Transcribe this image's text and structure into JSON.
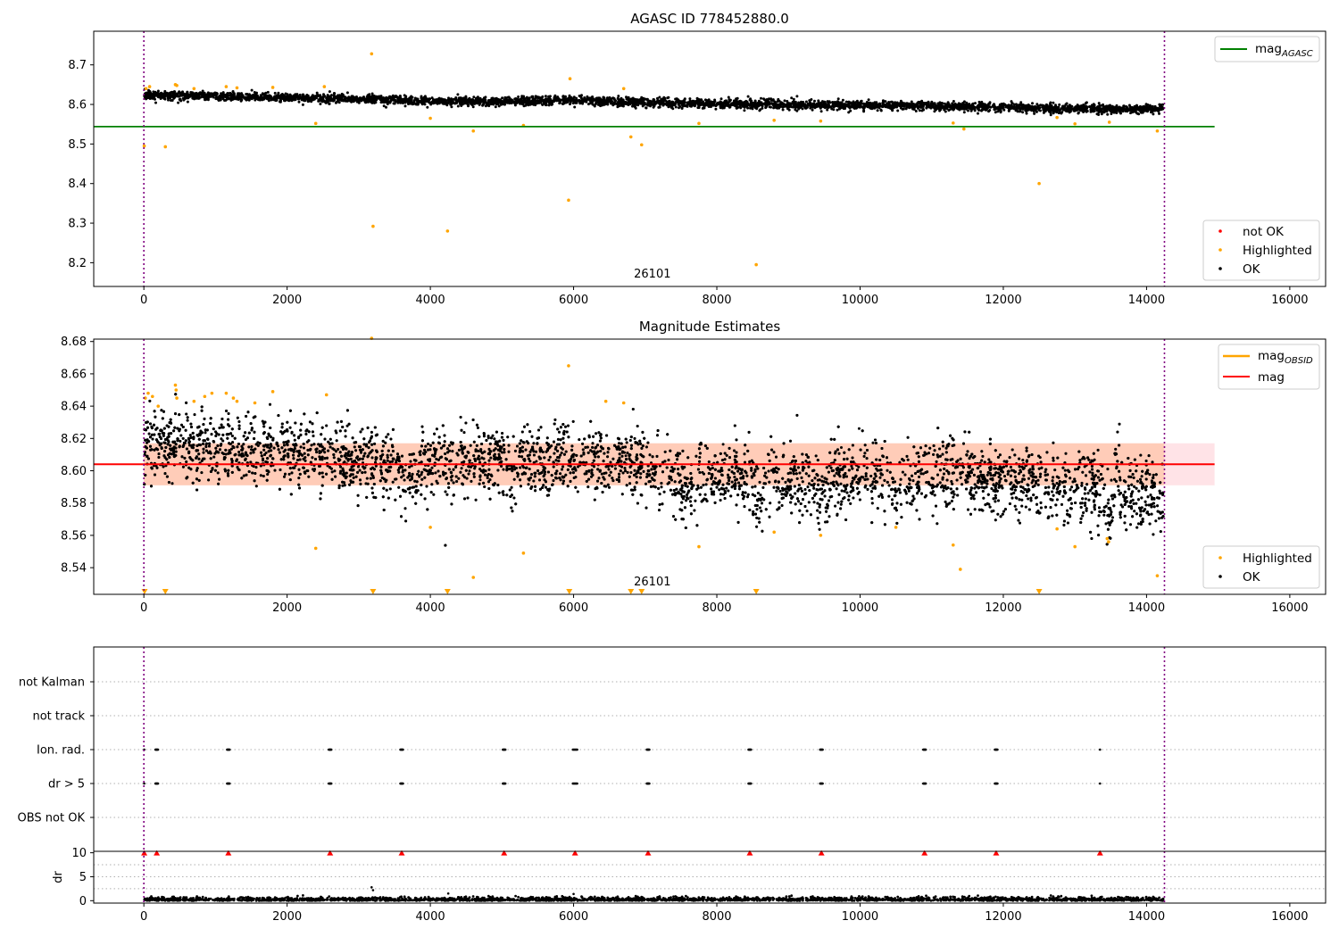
{
  "chart_data": [
    {
      "panel": "mag_agasc",
      "type": "scatter",
      "title": "AGASC ID 778452880.0",
      "xlim": [
        -700,
        16500
      ],
      "ylim": [
        8.14,
        8.785
      ],
      "xticks": [
        0,
        2000,
        4000,
        6000,
        8000,
        10000,
        12000,
        14000,
        16000
      ],
      "yticks": [
        8.2,
        8.3,
        8.4,
        8.5,
        8.6,
        8.7
      ],
      "annotation": "26101",
      "annotation_x": 7100,
      "vlines": [
        0,
        14250
      ],
      "hlines": [
        {
          "name": "mag_AGASC",
          "y": 8.544,
          "x_range": [
            0,
            14950
          ],
          "color": "#008000"
        }
      ],
      "ok_trend": {
        "x": [
          0,
          1000,
          2000,
          3000,
          4000,
          5000,
          6000,
          7000,
          8000,
          9000,
          10000,
          11000,
          12000,
          13000,
          14250
        ],
        "y": [
          8.624,
          8.621,
          8.617,
          8.614,
          8.607,
          8.607,
          8.61,
          8.605,
          8.601,
          8.6,
          8.598,
          8.596,
          8.593,
          8.589,
          8.588
        ]
      },
      "highlighted": {
        "x": [
          5,
          30,
          80,
          300,
          440,
          460,
          700,
          1150,
          1300,
          1800,
          2400,
          2520,
          3180,
          3200,
          4000,
          4240,
          4600,
          5300,
          5930,
          5950,
          6700,
          6800,
          6950,
          7750,
          8550,
          8800,
          9450,
          11300,
          11450,
          12500,
          12750,
          13000,
          13480,
          14150
        ],
        "y": [
          8.495,
          8.64,
          8.645,
          8.493,
          8.65,
          8.648,
          8.64,
          8.645,
          8.642,
          8.643,
          8.552,
          8.645,
          8.728,
          8.292,
          8.565,
          8.28,
          8.533,
          8.547,
          8.358,
          8.665,
          8.64,
          8.518,
          8.498,
          8.552,
          8.195,
          8.56,
          8.558,
          8.553,
          8.538,
          8.4,
          8.567,
          8.551,
          8.555,
          8.533
        ]
      },
      "legend_series": [
        {
          "label": "not OK",
          "color": "#ff0000"
        },
        {
          "label": "Highlighted",
          "color": "#ffa500"
        },
        {
          "label": "OK",
          "color": "#000000"
        }
      ],
      "legend_lines": [
        {
          "label_base": "mag",
          "label_sub": "AGASC",
          "color": "#008000"
        }
      ]
    },
    {
      "panel": "mag_estimates",
      "type": "scatter",
      "title": "Magnitude Estimates",
      "xlim": [
        -700,
        16500
      ],
      "ylim": [
        8.5235,
        8.6815
      ],
      "xticks": [
        0,
        2000,
        4000,
        6000,
        8000,
        10000,
        12000,
        14000,
        16000
      ],
      "yticks": [
        8.54,
        8.56,
        8.58,
        8.6,
        8.62,
        8.64,
        8.66,
        8.68
      ],
      "annotation": "26101",
      "annotation_x": 7100,
      "vlines": [
        0,
        14250
      ],
      "mag_line": 8.604,
      "band_outer": [
        8.591,
        8.617
      ],
      "band_inner": [
        8.591,
        8.617
      ],
      "band_inner_x": [
        0,
        14250
      ],
      "band_outer_x": [
        0,
        14950
      ],
      "ok_trend": {
        "x": [
          0,
          1000,
          2000,
          3000,
          3600,
          4000,
          5000,
          6000,
          7000,
          7500,
          8000,
          9000,
          10000,
          11000,
          12000,
          13000,
          13500,
          14250
        ],
        "y": [
          8.618,
          8.614,
          8.612,
          8.608,
          8.603,
          8.604,
          8.605,
          8.608,
          8.604,
          8.595,
          8.597,
          8.594,
          8.599,
          8.596,
          8.594,
          8.59,
          8.587,
          8.584
        ]
      },
      "highlighted": {
        "x": [
          20,
          60,
          120,
          200,
          440,
          450,
          460,
          700,
          850,
          950,
          1150,
          1250,
          1300,
          1550,
          1800,
          2400,
          2550,
          3180,
          4000,
          4600,
          5300,
          5930,
          6450,
          6700,
          7750,
          8800,
          9450,
          10500,
          11300,
          11400,
          12750,
          13000,
          13450,
          13470,
          14150
        ],
        "y": [
          8.645,
          8.648,
          8.646,
          8.64,
          8.653,
          8.65,
          8.645,
          8.643,
          8.646,
          8.648,
          8.648,
          8.645,
          8.643,
          8.642,
          8.649,
          8.552,
          8.647,
          8.682,
          8.565,
          8.534,
          8.549,
          8.665,
          8.643,
          8.642,
          8.553,
          8.562,
          8.56,
          8.565,
          8.554,
          8.539,
          8.564,
          8.553,
          8.558,
          8.556,
          8.535
        ]
      },
      "off_scale_low_x": [
        10,
        300,
        3200,
        4240,
        5940,
        6800,
        6950,
        8550,
        12500
      ],
      "legend_series": [
        {
          "label": "Highlighted",
          "color": "#ffa500"
        },
        {
          "label": "OK",
          "color": "#000000"
        }
      ],
      "legend_lines": [
        {
          "label_base": "mag",
          "label_sub": "OBSID",
          "color": "#ffa500"
        },
        {
          "label_base": "mag",
          "label_sub": "",
          "color": "#ff0000"
        }
      ]
    },
    {
      "panel": "flags",
      "type": "scatter",
      "xlim": [
        -700,
        16500
      ],
      "vlines": [
        0,
        14250
      ],
      "categories": [
        "not Kalman",
        "not track",
        "Ion. rad.",
        "dr > 5",
        "OBS not OK"
      ],
      "flag_clusters": [
        5,
        180,
        1180,
        2600,
        3600,
        5030,
        6020,
        7040,
        8460,
        9460,
        10900,
        11900,
        13350
      ]
    },
    {
      "panel": "dr",
      "type": "scatter",
      "ylabel": "dr",
      "xlim": [
        -700,
        16500
      ],
      "ylim": [
        -0.5,
        10.3
      ],
      "yticks": [
        0,
        5,
        10
      ],
      "xticks": [
        0,
        2000,
        4000,
        6000,
        8000,
        10000,
        12000,
        14000,
        16000
      ],
      "vlines": [
        0,
        14250
      ],
      "dr_typical": [
        0,
        1.1
      ],
      "dr_outliers": {
        "x": [
          3180,
          3200,
          4250,
          6000
        ],
        "y": [
          2.8,
          2.2,
          1.5,
          1.4
        ]
      },
      "dr_clipped_x": [
        5,
        180,
        1180,
        2600,
        3600,
        5030,
        6020,
        7040,
        8460,
        9460,
        10900,
        11900,
        13350
      ],
      "dr_clipped_value": 10
    }
  ]
}
